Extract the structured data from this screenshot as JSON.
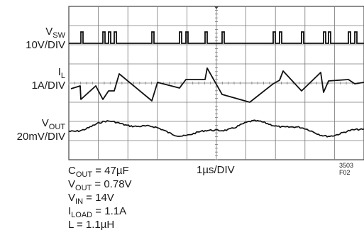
{
  "chart_data": {
    "type": "line",
    "title": "",
    "time_per_div": "1µs/DIV",
    "grid": {
      "divisions_x": 10,
      "divisions_y": 8,
      "shown": true
    },
    "channels": [
      {
        "name_main": "V",
        "name_sub": "SW",
        "scale": "10V/DIV",
        "waveform": "switch-node pulses (pairs of short pulses)"
      },
      {
        "name_main": "I",
        "name_sub": "L",
        "scale": "1A/DIV",
        "waveform": "inductor current sawtooth"
      },
      {
        "name_main": "V",
        "name_sub": "OUT",
        "scale": "20mV/DIV",
        "waveform": "output ripple"
      }
    ],
    "figure_id": "3503 F02",
    "conditions": [
      {
        "main": "C",
        "sub": "OUT",
        "rest": " = 47µF"
      },
      {
        "main": "V",
        "sub": "OUT",
        "rest": " = 0.78V"
      },
      {
        "main": "V",
        "sub": "IN",
        "rest": " = 14V"
      },
      {
        "main": "I",
        "sub": "LOAD",
        "rest": " = 1.1A"
      },
      {
        "main": "L",
        "sub": "",
        "rest": " = 1.1µH"
      }
    ]
  },
  "colors": {
    "grid": "#7a7a7a",
    "trace": "#111111",
    "frame": "#444444"
  }
}
